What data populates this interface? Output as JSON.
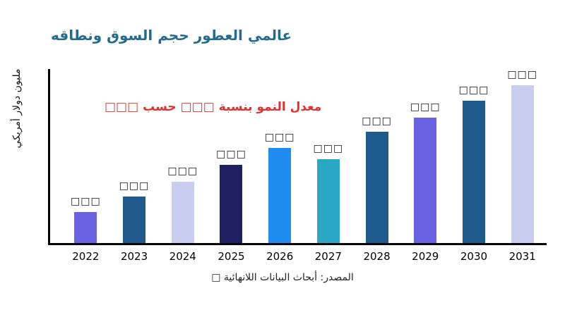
{
  "page": {
    "title": "عالمي العطور حجم السوق ونطاقه",
    "ylabel": "مليون دولار أمريكي",
    "annotation": "معدل النمو بنسبة □□□ حسب □□□",
    "source": "المصدر: أبحاث البيانات اللانهائية □"
  },
  "colors": {
    "title": "#256b8a",
    "annotation": "#e03131",
    "axis": "#000000",
    "background": "#ffffff"
  },
  "chart_data": {
    "type": "bar",
    "title": "عالمي العطور حجم السوق ونطاقه",
    "ylabel": "مليون دولار أمريكي",
    "xlabel": "",
    "categories": [
      "2022",
      "2023",
      "2024",
      "2025",
      "2026",
      "2027",
      "2028",
      "2029",
      "2030",
      "2031"
    ],
    "values": [
      45,
      67,
      88,
      112,
      137,
      120,
      160,
      180,
      204,
      228
    ],
    "value_labels": [
      "□□□",
      "□□□",
      "□□□",
      "□□□",
      "□□□",
      "□□□",
      "□□□",
      "□□□",
      "□□□",
      "□□□"
    ],
    "bar_colors": [
      "#6963e3",
      "#1f5a8c",
      "#c9cdf0",
      "#1e2062",
      "#1e8cf0",
      "#2aa7c5",
      "#1f5a8c",
      "#6963e3",
      "#1f5a8c",
      "#c9cdf0"
    ],
    "ylim": [
      0,
      250
    ],
    "grid": false,
    "legend": "none",
    "annotation": "معدل النمو بنسبة □□□ حسب □□□",
    "note": "bar value labels render as placeholder tofu boxes"
  }
}
